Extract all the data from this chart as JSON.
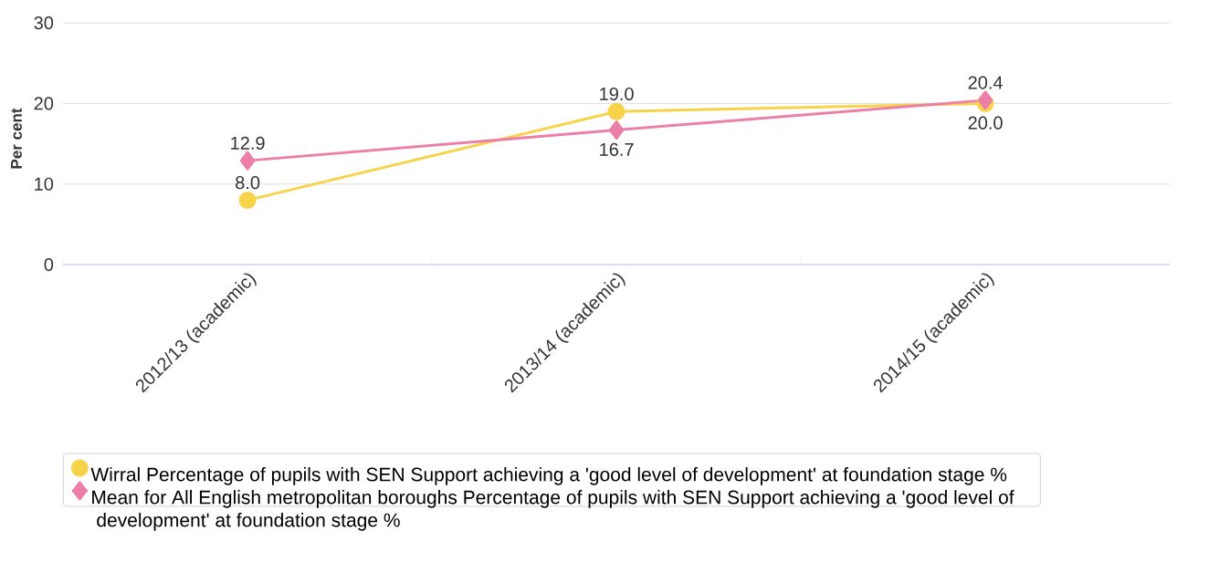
{
  "chart_data": {
    "type": "line",
    "ylabel": "Per cent",
    "categories": [
      "2012/13 (academic)",
      "2013/14 (academic)",
      "2014/15 (academic)"
    ],
    "series": [
      {
        "name": "Wirral Percentage of pupils with SEN Support achieving a 'good level of development' at foundation stage %",
        "color": "#f7d34a",
        "marker": "circle",
        "values": [
          8.0,
          19.0,
          20.0
        ],
        "value_labels": [
          "8.0",
          "19.0",
          "20.0"
        ]
      },
      {
        "name": "Mean for All English metropolitan boroughs Percentage of pupils with SEN Support achieving a 'good level of development' at foundation stage %",
        "color": "#ec7fa8",
        "marker": "diamond",
        "values": [
          12.9,
          16.7,
          20.4
        ],
        "value_labels": [
          "12.9",
          "16.7",
          "20.4"
        ]
      }
    ],
    "ylim": [
      0,
      30
    ],
    "yticks": [
      0,
      10,
      20,
      30
    ],
    "grid": "y",
    "legend": "bottom"
  }
}
